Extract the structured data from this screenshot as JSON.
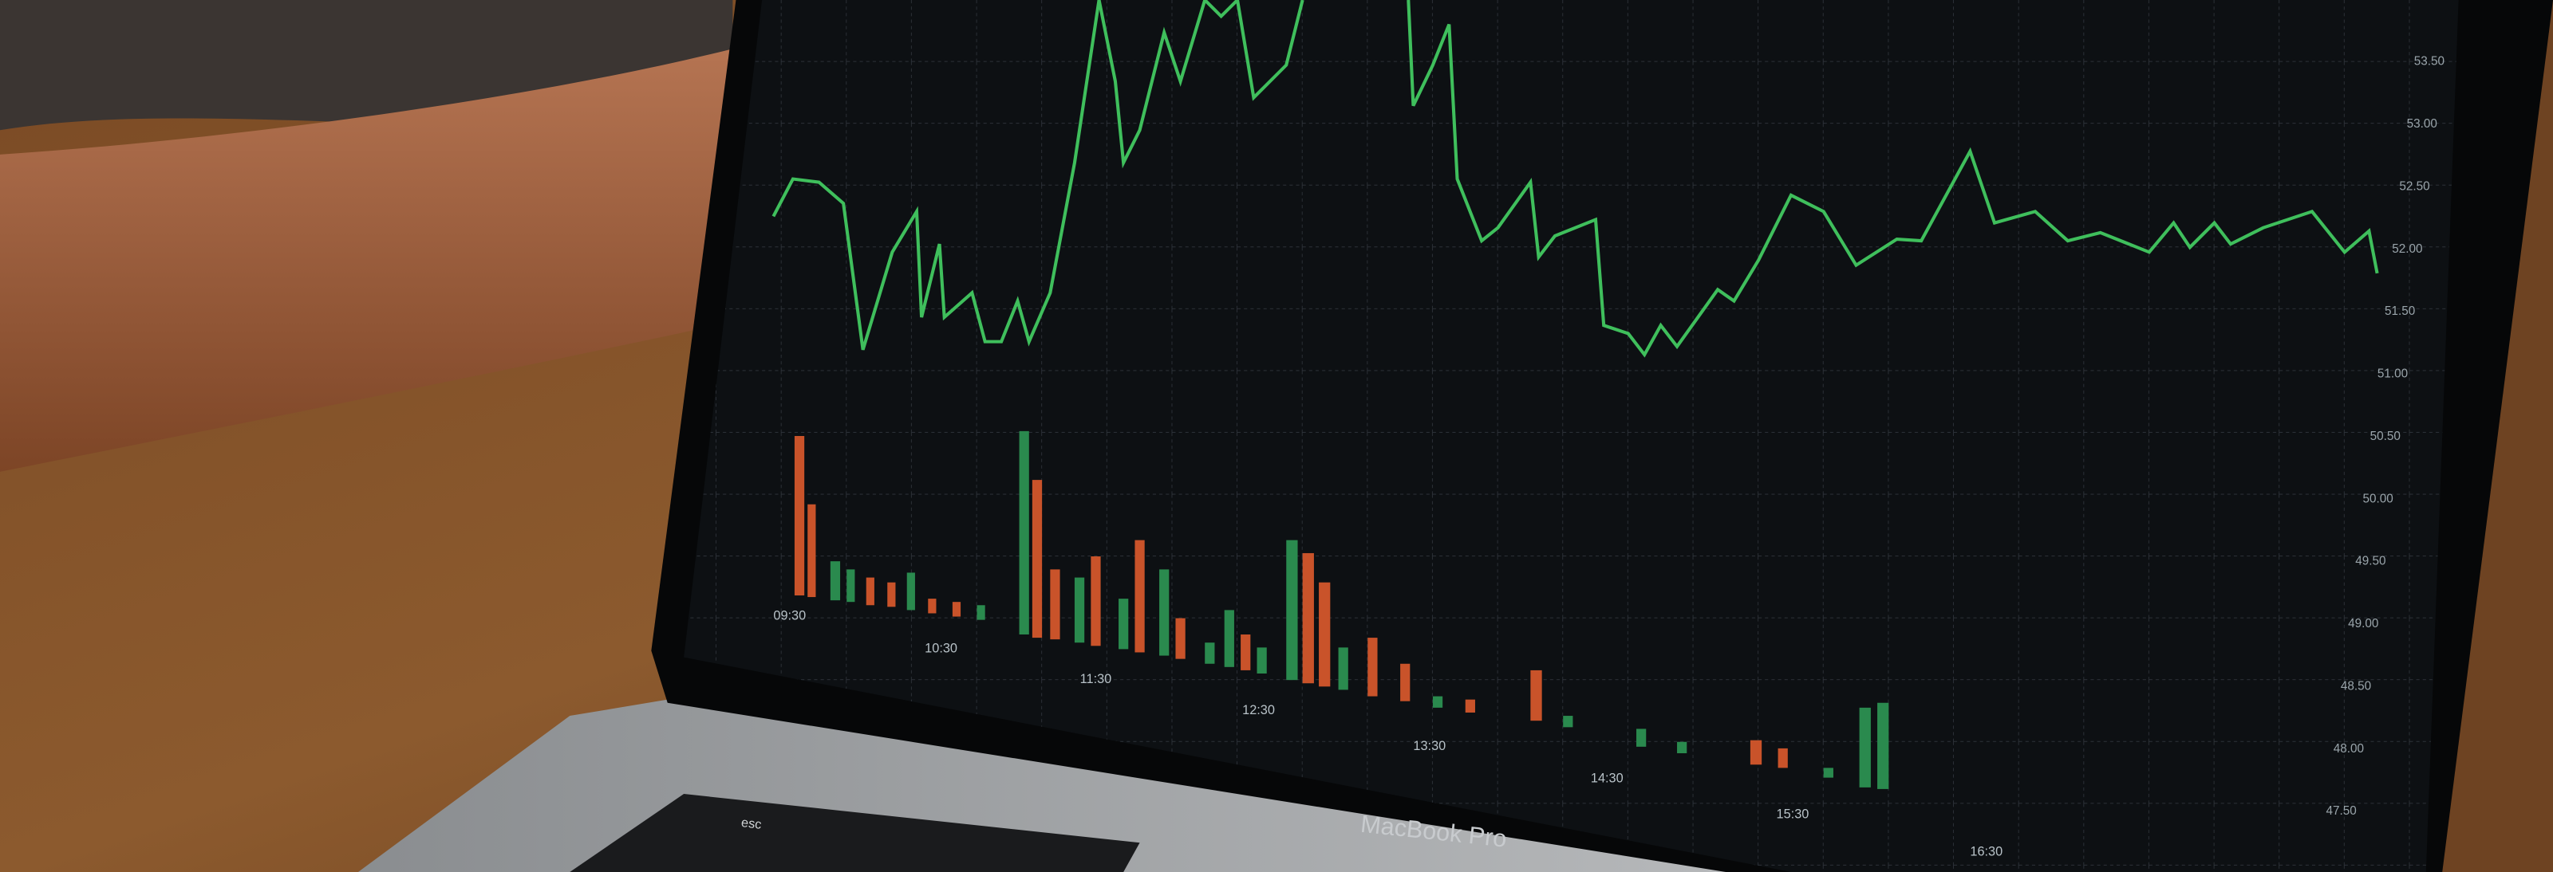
{
  "screen": {
    "price_labels": [
      "53.50",
      "53.00",
      "52.50",
      "52.00",
      "51.50",
      "51.00",
      "50.50",
      "50.00",
      "49.50",
      "49.00",
      "48.50",
      "48.00",
      "47.50"
    ],
    "time_labels": [
      "09:30",
      "10:30",
      "11:30",
      "12:30",
      "13:30",
      "14:30",
      "15:30",
      "16:30"
    ]
  },
  "laptop": {
    "brand": "MacBook Pro",
    "key": "esc"
  }
}
